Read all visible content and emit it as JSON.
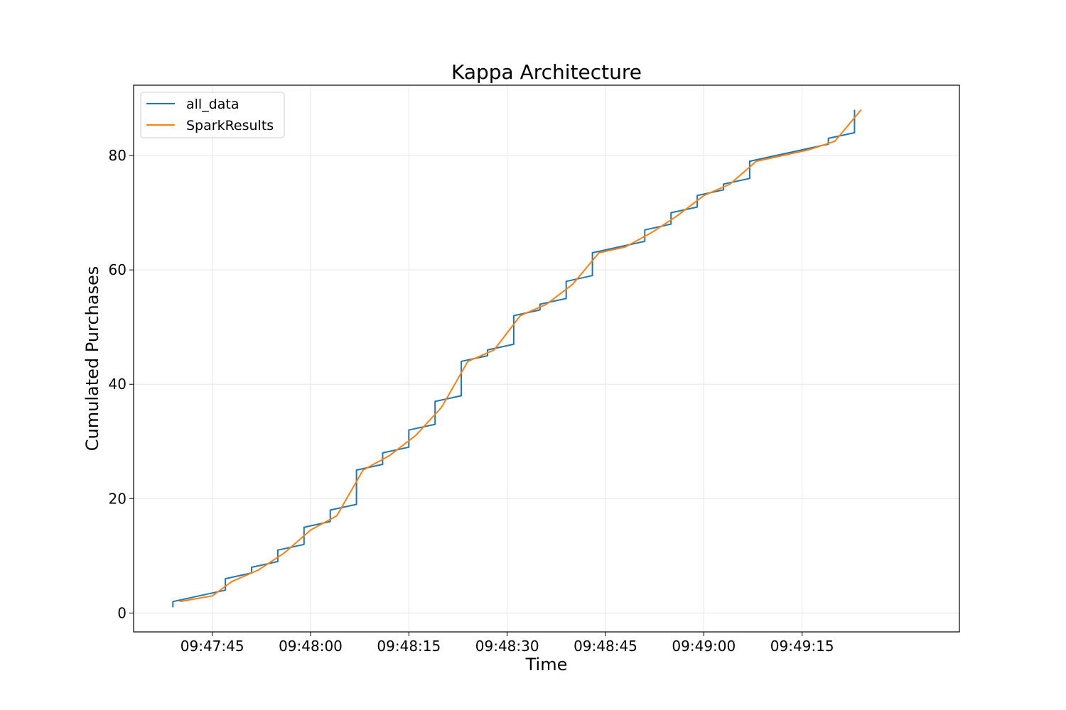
{
  "chart_data": {
    "type": "line",
    "title": "Kappa Architecture",
    "xlabel": "Time",
    "ylabel": "Cumulated Purchases",
    "x_unit": "time of day (HH:MM:SS)",
    "xlim": [
      "09:47:33",
      "09:49:39"
    ],
    "ylim": [
      -3.3,
      92.3
    ],
    "x_ticks": [
      "09:47:45",
      "09:48:00",
      "09:48:15",
      "09:48:30",
      "09:48:45",
      "09:49:00",
      "09:49:15"
    ],
    "y_ticks": [
      0,
      20,
      40,
      60,
      80
    ],
    "grid": true,
    "legend": {
      "position": "top-left",
      "entries": [
        "all_data",
        "SparkResults"
      ]
    },
    "series": [
      {
        "name": "all_data",
        "color": "#1f77b4",
        "drawstyle": "steps",
        "points": [
          [
            "09:47:39",
            1
          ],
          [
            "09:47:39",
            2
          ],
          [
            "09:47:47",
            4
          ],
          [
            "09:47:47",
            6
          ],
          [
            "09:47:51",
            7
          ],
          [
            "09:47:51",
            8
          ],
          [
            "09:47:55",
            9
          ],
          [
            "09:47:55",
            11
          ],
          [
            "09:47:59",
            12
          ],
          [
            "09:47:59",
            15
          ],
          [
            "09:48:03",
            16
          ],
          [
            "09:48:03",
            18
          ],
          [
            "09:48:07",
            19
          ],
          [
            "09:48:07",
            25
          ],
          [
            "09:48:11",
            26
          ],
          [
            "09:48:11",
            28
          ],
          [
            "09:48:15",
            29
          ],
          [
            "09:48:15",
            32
          ],
          [
            "09:48:19",
            33
          ],
          [
            "09:48:19",
            37
          ],
          [
            "09:48:23",
            38
          ],
          [
            "09:48:23",
            44
          ],
          [
            "09:48:27",
            45
          ],
          [
            "09:48:27",
            46
          ],
          [
            "09:48:31",
            47
          ],
          [
            "09:48:31",
            52
          ],
          [
            "09:48:35",
            53
          ],
          [
            "09:48:35",
            54
          ],
          [
            "09:48:39",
            55
          ],
          [
            "09:48:39",
            58
          ],
          [
            "09:48:43",
            59
          ],
          [
            "09:48:43",
            63
          ],
          [
            "09:48:51",
            65
          ],
          [
            "09:48:51",
            67
          ],
          [
            "09:48:55",
            68
          ],
          [
            "09:48:55",
            70
          ],
          [
            "09:48:59",
            71
          ],
          [
            "09:48:59",
            73
          ],
          [
            "09:49:03",
            74
          ],
          [
            "09:49:03",
            75
          ],
          [
            "09:49:07",
            76
          ],
          [
            "09:49:07",
            79
          ],
          [
            "09:49:19",
            82
          ],
          [
            "09:49:19",
            83
          ],
          [
            "09:49:23",
            84
          ],
          [
            "09:49:23",
            88
          ]
        ]
      },
      {
        "name": "SparkResults",
        "color": "#ff7f0e",
        "drawstyle": "linear",
        "points": [
          [
            "09:47:40",
            2
          ],
          [
            "09:47:45",
            3
          ],
          [
            "09:47:48",
            5.5
          ],
          [
            "09:47:52",
            7.5
          ],
          [
            "09:47:56",
            10.5
          ],
          [
            "09:48:00",
            14.5
          ],
          [
            "09:48:04",
            17
          ],
          [
            "09:48:08",
            25
          ],
          [
            "09:48:12",
            27.5
          ],
          [
            "09:48:16",
            31
          ],
          [
            "09:48:20",
            36
          ],
          [
            "09:48:24",
            44
          ],
          [
            "09:48:28",
            46
          ],
          [
            "09:48:32",
            52
          ],
          [
            "09:48:36",
            54
          ],
          [
            "09:48:40",
            57.5
          ],
          [
            "09:48:44",
            63
          ],
          [
            "09:48:48",
            64
          ],
          [
            "09:48:52",
            66.5
          ],
          [
            "09:48:56",
            69.5
          ],
          [
            "09:49:00",
            73
          ],
          [
            "09:49:04",
            75
          ],
          [
            "09:49:08",
            79
          ],
          [
            "09:49:12",
            80
          ],
          [
            "09:49:16",
            81
          ],
          [
            "09:49:20",
            82.5
          ],
          [
            "09:49:24",
            88
          ]
        ]
      }
    ]
  }
}
